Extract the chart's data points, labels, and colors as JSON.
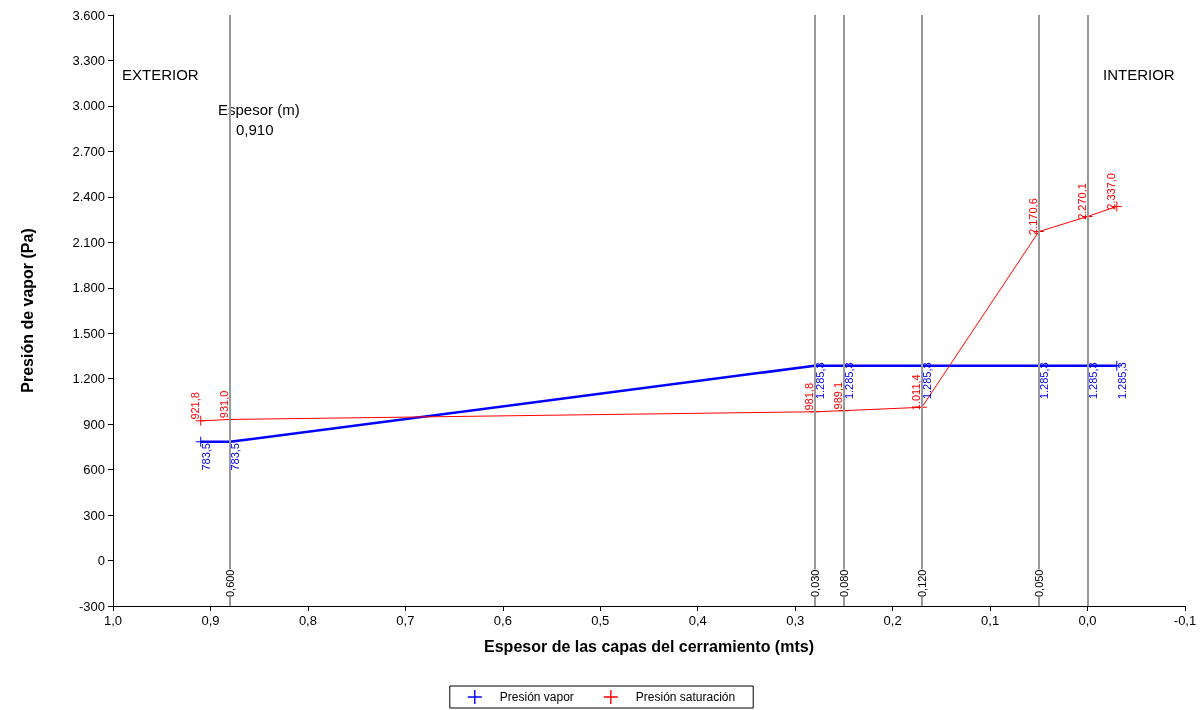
{
  "chart_data": {
    "type": "line",
    "xlabel": "Espesor de las capas del cerramiento (mts)",
    "ylabel": "Presión de vapor (Pa)",
    "x": [
      0.91,
      0.88,
      0.28,
      0.25,
      0.17,
      0.05,
      0.0,
      -0.03
    ],
    "series": [
      {
        "name": "Presión vapor",
        "color": "#0000ff",
        "values": [
          783.5,
          783.5,
          1285.3,
          1285.3,
          1285.3,
          1285.3,
          1285.3,
          1285.3
        ],
        "value_labels": [
          "783,5",
          "783,5",
          "1.285,3",
          "1.285,3",
          "1.285,3",
          "1.285,3",
          "1.285,3",
          "1.285,3"
        ]
      },
      {
        "name": "Presión saturación",
        "color": "#ff0000",
        "values": [
          921.8,
          931.0,
          981.8,
          989.1,
          1011.4,
          2170.6,
          2270.1,
          2337.0
        ],
        "value_labels": [
          "921,8",
          "931,0",
          "981,8",
          "989,1",
          "1.011,4",
          "2.170,6",
          "2.270,1",
          "2.337,0"
        ]
      }
    ],
    "marker": "cross",
    "line_style": "solid",
    "xlim": [
      1.0,
      -0.1
    ],
    "xticks": [
      {
        "value": 1.0,
        "label": "1,0"
      },
      {
        "value": 0.9,
        "label": "0,9"
      },
      {
        "value": 0.8,
        "label": "0,8"
      },
      {
        "value": 0.7,
        "label": "0,7"
      },
      {
        "value": 0.6,
        "label": "0,6"
      },
      {
        "value": 0.5,
        "label": "0,5"
      },
      {
        "value": 0.4,
        "label": "0,4"
      },
      {
        "value": 0.3,
        "label": "0,3"
      },
      {
        "value": 0.2,
        "label": "0,2"
      },
      {
        "value": 0.1,
        "label": "0,1"
      },
      {
        "value": 0.0,
        "label": "0,0"
      },
      {
        "value": -0.1,
        "label": "-0,1"
      }
    ],
    "ylim": [
      -300,
      3600
    ],
    "yticks": [
      {
        "value": -300,
        "label": "-300"
      },
      {
        "value": 0,
        "label": "0"
      },
      {
        "value": 300,
        "label": "300"
      },
      {
        "value": 600,
        "label": "600"
      },
      {
        "value": 900,
        "label": "900"
      },
      {
        "value": 1200,
        "label": "1.200"
      },
      {
        "value": 1500,
        "label": "1.500"
      },
      {
        "value": 1800,
        "label": "1.800"
      },
      {
        "value": 2100,
        "label": "2.100"
      },
      {
        "value": 2400,
        "label": "2.400"
      },
      {
        "value": 2700,
        "label": "2.700"
      },
      {
        "value": 3000,
        "label": "3.000"
      },
      {
        "value": 3300,
        "label": "3.300"
      },
      {
        "value": 3600,
        "label": "3.600"
      }
    ],
    "ref_lines": [
      {
        "axis": "x",
        "value": 0.88,
        "color": "#999999"
      },
      {
        "axis": "x",
        "value": 0.28,
        "color": "#999999"
      },
      {
        "axis": "x",
        "value": 0.25,
        "color": "#999999"
      },
      {
        "axis": "x",
        "value": 0.17,
        "color": "#999999"
      },
      {
        "axis": "x",
        "value": 0.05,
        "color": "#999999"
      },
      {
        "axis": "x",
        "value": 0.0,
        "color": "#999999"
      }
    ],
    "annotations": [
      "EXTERIOR",
      "INTERIOR",
      "Espesor (m)",
      "0,910",
      {
        "text": "0,600",
        "x": 0.88,
        "y": -150
      },
      {
        "text": "0,030",
        "x": 0.28,
        "y": -150
      },
      {
        "text": "0,080",
        "x": 0.25,
        "y": -150
      },
      {
        "text": "0,120",
        "x": 0.17,
        "y": -150
      },
      {
        "text": "0,050",
        "x": 0.05,
        "y": -150
      }
    ],
    "grid": false,
    "legend": "bottom"
  }
}
